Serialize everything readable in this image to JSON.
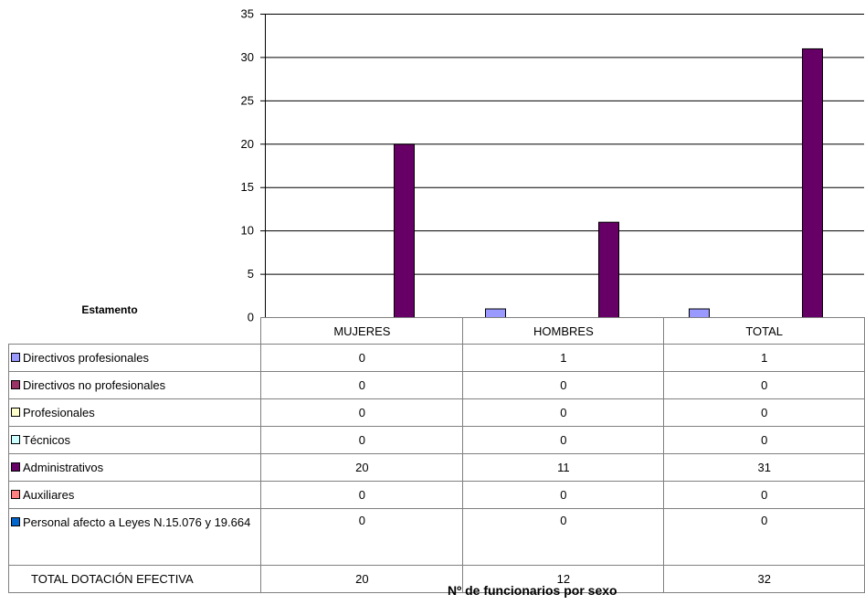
{
  "chart_data": {
    "type": "bar",
    "title": "Nº de funcionarios por sexo",
    "table_header": "Estamento",
    "categories": [
      "MUJERES",
      "HOMBRES",
      "TOTAL"
    ],
    "ylim": [
      0,
      35
    ],
    "yticks": [
      "0",
      "5",
      "10",
      "15",
      "20",
      "25",
      "30",
      "35"
    ],
    "grid": true,
    "series": [
      {
        "name": "Directivos profesionales",
        "color": "#9999FF",
        "values": [
          0,
          1,
          1
        ]
      },
      {
        "name": "Directivos no profesionales",
        "color": "#993366",
        "values": [
          0,
          0,
          0
        ]
      },
      {
        "name": "Profesionales",
        "color": "#FFFFCC",
        "values": [
          0,
          0,
          0
        ]
      },
      {
        "name": "Técnicos",
        "color": "#CCFFFF",
        "values": [
          0,
          0,
          0
        ]
      },
      {
        "name": "Administrativos",
        "color": "#660066",
        "values": [
          20,
          11,
          31
        ]
      },
      {
        "name": "Auxiliares",
        "color": "#FF8080",
        "values": [
          0,
          0,
          0
        ]
      },
      {
        "name": "Personal afecto a Leyes N.15.076 y 19.664",
        "color": "#0066CC",
        "values": [
          0,
          0,
          0
        ]
      }
    ],
    "total_row": {
      "label": "TOTAL DOTACIÓN EFECTIVA",
      "values": [
        "20",
        "12",
        "32"
      ]
    }
  }
}
